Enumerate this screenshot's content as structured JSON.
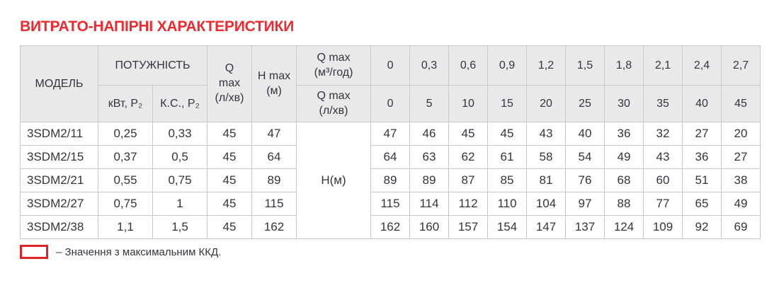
{
  "page": {
    "title": "ВИТРАТО-НАПІРНІ ХАРАКТЕРИСТИКИ"
  },
  "colors": {
    "title_red": "#f0292f",
    "highlight_red": "#e2232a",
    "header_bg": "#e9e9e9",
    "border": "#c9c9c9",
    "text": "#34343c"
  },
  "table": {
    "header": {
      "model": "МОДЕЛЬ",
      "power": "ПОТУЖНІСТЬ",
      "power_kw": "кВт, P₂",
      "power_hp": "К.С., P₂",
      "q_max": "Q\nmax\n(л/хв)",
      "h_max": "H max\n(м)",
      "q_max_m3h": "Q max\n(м³/год)",
      "q_max_lmin": "Q max\n(л/хв)",
      "flow_m3h": [
        "0",
        "0,3",
        "0,6",
        "0,9",
        "1,2",
        "1,5",
        "1,8",
        "2,1",
        "2,4",
        "2,7"
      ],
      "flow_lmin": [
        "0",
        "5",
        "10",
        "15",
        "20",
        "25",
        "30",
        "35",
        "40",
        "45"
      ]
    },
    "body_center_label": "Н(м)",
    "highlight_col_index": 6,
    "rows": [
      {
        "model": "3SDM2/11",
        "kw": "0,25",
        "hp": "0,33",
        "qmax": "45",
        "hmax": "47",
        "heads": [
          "47",
          "46",
          "45",
          "45",
          "43",
          "40",
          "36",
          "32",
          "27",
          "20"
        ]
      },
      {
        "model": "3SDM2/15",
        "kw": "0,37",
        "hp": "0,5",
        "qmax": "45",
        "hmax": "64",
        "heads": [
          "64",
          "63",
          "62",
          "61",
          "58",
          "54",
          "49",
          "43",
          "36",
          "27"
        ]
      },
      {
        "model": "3SDM2/21",
        "kw": "0,55",
        "hp": "0,75",
        "qmax": "45",
        "hmax": "89",
        "heads": [
          "89",
          "89",
          "87",
          "85",
          "81",
          "76",
          "68",
          "60",
          "51",
          "38"
        ]
      },
      {
        "model": "3SDM2/27",
        "kw": "0,75",
        "hp": "1",
        "qmax": "45",
        "hmax": "115",
        "heads": [
          "115",
          "114",
          "112",
          "110",
          "104",
          "97",
          "88",
          "77",
          "65",
          "49"
        ]
      },
      {
        "model": "3SDM2/38",
        "kw": "1,1",
        "hp": "1,5",
        "qmax": "45",
        "hmax": "162",
        "heads": [
          "162",
          "160",
          "157",
          "154",
          "147",
          "137",
          "124",
          "109",
          "92",
          "69"
        ]
      }
    ]
  },
  "legend": {
    "label": "– Значення з максимальним ККД."
  }
}
